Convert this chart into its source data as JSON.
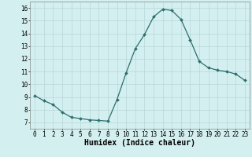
{
  "x": [
    0,
    1,
    2,
    3,
    4,
    5,
    6,
    7,
    8,
    9,
    10,
    11,
    12,
    13,
    14,
    15,
    16,
    17,
    18,
    19,
    20,
    21,
    22,
    23
  ],
  "y": [
    9.1,
    8.7,
    8.4,
    7.8,
    7.4,
    7.3,
    7.2,
    7.15,
    7.1,
    8.8,
    10.9,
    12.8,
    13.9,
    15.3,
    15.9,
    15.8,
    15.1,
    13.5,
    11.8,
    11.3,
    11.1,
    11.0,
    10.8,
    10.3
  ],
  "line_color": "#2d6e6e",
  "marker": "D",
  "marker_size": 2.0,
  "linewidth": 0.9,
  "background_color": "#d4efef",
  "grid_color": "#b8d8d8",
  "xlabel": "Humidex (Indice chaleur)",
  "xlabel_fontsize": 7,
  "xlim": [
    -0.5,
    23.5
  ],
  "ylim": [
    6.5,
    16.5
  ],
  "yticks": [
    7,
    8,
    9,
    10,
    11,
    12,
    13,
    14,
    15,
    16
  ],
  "xticks": [
    0,
    1,
    2,
    3,
    4,
    5,
    6,
    7,
    8,
    9,
    10,
    11,
    12,
    13,
    14,
    15,
    16,
    17,
    18,
    19,
    20,
    21,
    22,
    23
  ],
  "tick_fontsize": 5.5
}
